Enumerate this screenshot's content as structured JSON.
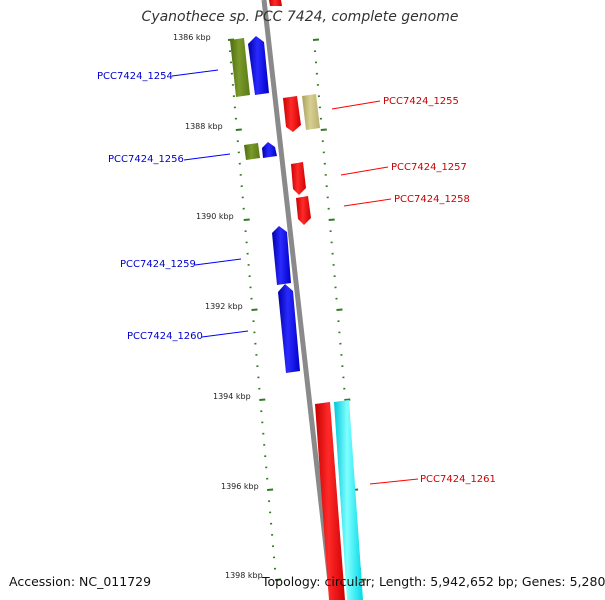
{
  "title": "Cyanothece sp. PCC 7424, complete genome",
  "accession_label": "Accession: NC_011729",
  "summary": {
    "topology": "Topology: circular;",
    "length": "Length: 5,942,652 bp;",
    "genes": "Genes: 5,280"
  },
  "colors": {
    "backbone": "#8a8a8a",
    "tick": "#2f7d1f",
    "forward_gene": "#0000ff",
    "reverse_gene": "#ff0000",
    "olive_gene": "#6b8e23",
    "khaki_gene": "#c8c080",
    "cyan_gene": "#00ffff",
    "forward_label": "#0000cc",
    "reverse_label": "#cc0000"
  },
  "scale_labels": [
    "1386 kbp",
    "1388 kbp",
    "1390 kbp",
    "1392 kbp",
    "1394 kbp",
    "1396 kbp",
    "1398 kbp"
  ],
  "genes": [
    {
      "id": "PCC7424_1254",
      "strand": "forward"
    },
    {
      "id": "PCC7424_1255",
      "strand": "reverse"
    },
    {
      "id": "PCC7424_1256",
      "strand": "forward"
    },
    {
      "id": "PCC7424_1257",
      "strand": "reverse"
    },
    {
      "id": "PCC7424_1258",
      "strand": "reverse"
    },
    {
      "id": "PCC7424_1259",
      "strand": "forward"
    },
    {
      "id": "PCC7424_1260",
      "strand": "forward"
    },
    {
      "id": "PCC7424_1261",
      "strand": "reverse"
    }
  ]
}
